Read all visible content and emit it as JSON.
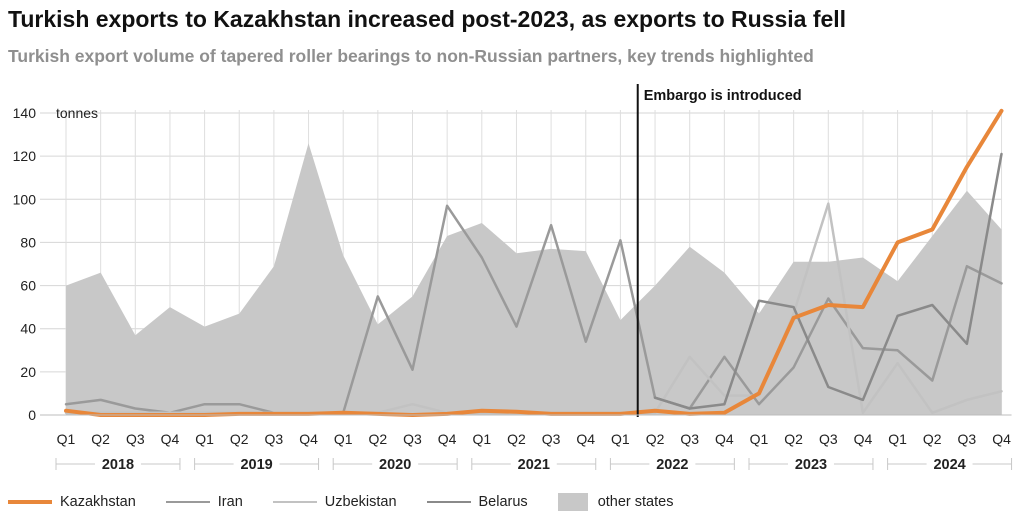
{
  "chart_data": {
    "type": "area",
    "title": "Turkish exports to Kazakhstan increased post-2023, as exports to Russia fell",
    "subtitle": "Turkish export volume of tapered roller bearings to non-Russian partners, key trends highlighted",
    "ylabel": "tonnes",
    "ylim": [
      0,
      140
    ],
    "yticks": [
      0,
      20,
      40,
      60,
      80,
      100,
      120,
      140
    ],
    "grid": true,
    "legend_position": "bottom",
    "categories": [
      "Q1",
      "Q2",
      "Q3",
      "Q4",
      "Q1",
      "Q2",
      "Q3",
      "Q4",
      "Q1",
      "Q2",
      "Q3",
      "Q4",
      "Q1",
      "Q2",
      "Q3",
      "Q4",
      "Q1",
      "Q2",
      "Q3",
      "Q4",
      "Q1",
      "Q2",
      "Q3",
      "Q4",
      "Q1",
      "Q2",
      "Q3",
      "Q4"
    ],
    "year_groups": [
      {
        "label": "2018",
        "start": 0,
        "end": 3
      },
      {
        "label": "2019",
        "start": 4,
        "end": 7
      },
      {
        "label": "2020",
        "start": 8,
        "end": 11
      },
      {
        "label": "2021",
        "start": 12,
        "end": 15
      },
      {
        "label": "2022",
        "start": 16,
        "end": 19
      },
      {
        "label": "2023",
        "start": 20,
        "end": 23
      },
      {
        "label": "2024",
        "start": 24,
        "end": 27
      }
    ],
    "annotation": {
      "label": "Embargo is introduced",
      "x": 16.5
    },
    "area_series": {
      "name": "other states",
      "color": "#c8c8c8",
      "values": [
        60,
        66,
        37,
        50,
        41,
        47,
        69,
        126,
        74,
        42,
        55,
        83,
        89,
        75,
        77,
        76,
        44,
        60,
        78,
        66,
        47,
        71,
        71,
        73,
        62,
        83,
        104,
        86
      ]
    },
    "series": [
      {
        "name": "Iran",
        "color": "#9a9a9a",
        "width": 2.5,
        "values": [
          5,
          7,
          3,
          1,
          5,
          5,
          1,
          1,
          1,
          55,
          21,
          97,
          73,
          41,
          88,
          34,
          81,
          8,
          3,
          27,
          5,
          22,
          54,
          31,
          30,
          16,
          69,
          61
        ]
      },
      {
        "name": "Uzbekistan",
        "color": "#c2c2c2",
        "width": 2.5,
        "values": [
          1,
          1,
          1,
          1,
          1,
          1,
          1,
          1,
          1,
          1,
          5,
          1,
          1,
          1,
          1,
          1,
          1,
          1,
          27,
          9,
          9,
          47,
          98,
          1,
          24,
          1,
          7,
          11
        ]
      },
      {
        "name": "Belarus",
        "color": "#8a8a8a",
        "width": 2.5,
        "values": [
          null,
          null,
          null,
          null,
          null,
          null,
          null,
          null,
          null,
          null,
          null,
          null,
          null,
          null,
          null,
          null,
          null,
          8,
          3,
          5,
          53,
          50,
          13,
          7,
          46,
          51,
          33,
          121
        ]
      },
      {
        "name": "Kazakhstan",
        "color": "#e8873a",
        "width": 4,
        "values": [
          2,
          0,
          0,
          0,
          0,
          0.5,
          0.5,
          0.5,
          1,
          0.5,
          0,
          0.5,
          2,
          1.5,
          0.5,
          0.5,
          0.5,
          2,
          0.5,
          1,
          10,
          45,
          51,
          50,
          80,
          86,
          115,
          141
        ]
      }
    ],
    "legend": [
      {
        "name": "Kazakhstan",
        "kind": "line",
        "color": "#e8873a",
        "width": 4
      },
      {
        "name": "Iran",
        "kind": "line",
        "color": "#9a9a9a",
        "width": 2.5
      },
      {
        "name": "Uzbekistan",
        "kind": "line",
        "color": "#c2c2c2",
        "width": 2.5
      },
      {
        "name": "Belarus",
        "kind": "line",
        "color": "#8a8a8a",
        "width": 2.5
      },
      {
        "name": "other states",
        "kind": "area",
        "color": "#c8c8c8"
      }
    ]
  }
}
